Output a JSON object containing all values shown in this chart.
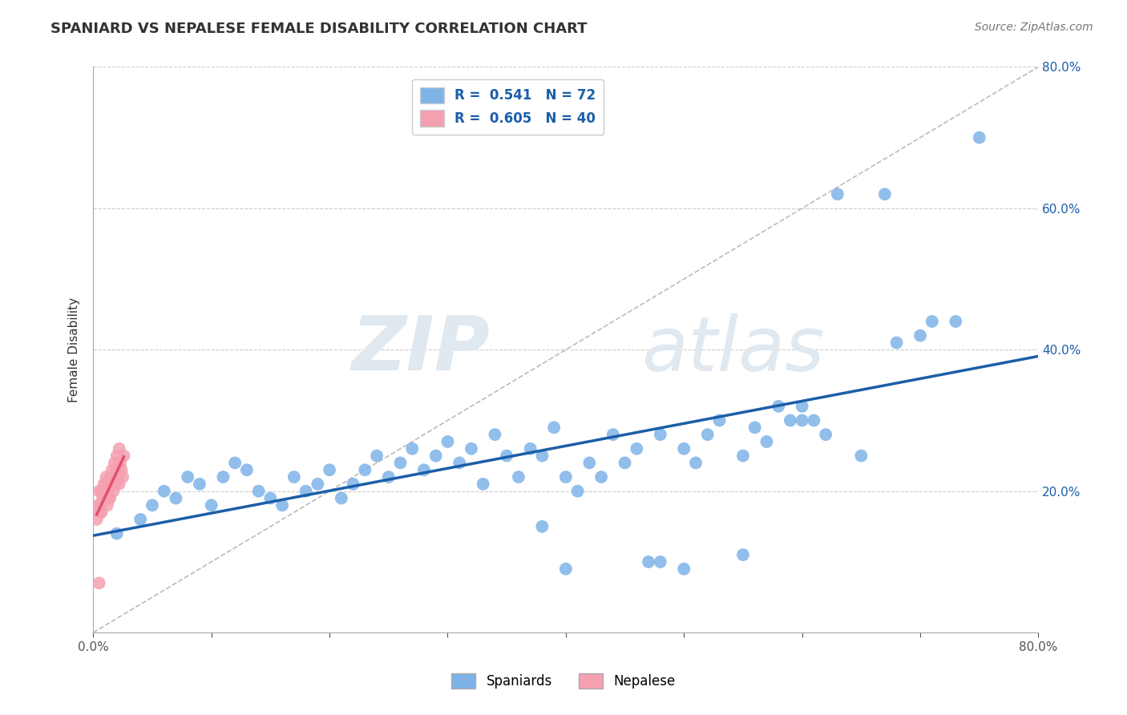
{
  "title": "SPANIARD VS NEPALESE FEMALE DISABILITY CORRELATION CHART",
  "source_text": "Source: ZipAtlas.com",
  "ylabel": "Female Disability",
  "xlim": [
    0.0,
    0.8
  ],
  "ylim": [
    0.0,
    0.8
  ],
  "spaniards_x": [
    0.02,
    0.04,
    0.05,
    0.06,
    0.07,
    0.08,
    0.09,
    0.1,
    0.11,
    0.12,
    0.13,
    0.14,
    0.15,
    0.16,
    0.17,
    0.18,
    0.19,
    0.2,
    0.21,
    0.22,
    0.23,
    0.24,
    0.25,
    0.26,
    0.27,
    0.28,
    0.29,
    0.3,
    0.31,
    0.32,
    0.33,
    0.34,
    0.35,
    0.36,
    0.37,
    0.38,
    0.39,
    0.4,
    0.41,
    0.42,
    0.43,
    0.44,
    0.45,
    0.46,
    0.47,
    0.48,
    0.5,
    0.51,
    0.52,
    0.53,
    0.55,
    0.56,
    0.57,
    0.58,
    0.59,
    0.6,
    0.61,
    0.62,
    0.63,
    0.65,
    0.67,
    0.68,
    0.7,
    0.71,
    0.73,
    0.75,
    0.48,
    0.38,
    0.55,
    0.6,
    0.5,
    0.4
  ],
  "spaniards_y": [
    0.14,
    0.16,
    0.18,
    0.2,
    0.19,
    0.22,
    0.21,
    0.18,
    0.22,
    0.24,
    0.23,
    0.2,
    0.19,
    0.18,
    0.22,
    0.2,
    0.21,
    0.23,
    0.19,
    0.21,
    0.23,
    0.25,
    0.22,
    0.24,
    0.26,
    0.23,
    0.25,
    0.27,
    0.24,
    0.26,
    0.21,
    0.28,
    0.25,
    0.22,
    0.26,
    0.25,
    0.29,
    0.22,
    0.2,
    0.24,
    0.22,
    0.28,
    0.24,
    0.26,
    0.1,
    0.28,
    0.26,
    0.24,
    0.28,
    0.3,
    0.25,
    0.29,
    0.27,
    0.32,
    0.3,
    0.32,
    0.3,
    0.28,
    0.62,
    0.25,
    0.62,
    0.41,
    0.42,
    0.44,
    0.44,
    0.7,
    0.1,
    0.15,
    0.11,
    0.3,
    0.09,
    0.09
  ],
  "nepalese_x": [
    0.003,
    0.004,
    0.005,
    0.006,
    0.007,
    0.008,
    0.009,
    0.01,
    0.011,
    0.012,
    0.013,
    0.014,
    0.015,
    0.016,
    0.017,
    0.018,
    0.019,
    0.02,
    0.021,
    0.022,
    0.023,
    0.024,
    0.025,
    0.026,
    0.012,
    0.008,
    0.015,
    0.01,
    0.018,
    0.022,
    0.007,
    0.013,
    0.016,
    0.009,
    0.011,
    0.02,
    0.006,
    0.014,
    0.017,
    0.005
  ],
  "nepalese_y": [
    0.16,
    0.18,
    0.2,
    0.18,
    0.2,
    0.19,
    0.21,
    0.2,
    0.22,
    0.2,
    0.21,
    0.19,
    0.22,
    0.21,
    0.2,
    0.22,
    0.21,
    0.23,
    0.22,
    0.21,
    0.24,
    0.23,
    0.22,
    0.25,
    0.18,
    0.2,
    0.22,
    0.19,
    0.24,
    0.26,
    0.17,
    0.21,
    0.23,
    0.2,
    0.21,
    0.25,
    0.17,
    0.19,
    0.22,
    0.07
  ],
  "spaniard_color": "#7EB3E8",
  "nepalese_color": "#F4A0B0",
  "spaniard_line_color": "#1B5EA8",
  "nepalese_line_color": "#E05070",
  "diagonal_color": "#BBBBBB",
  "R_spaniard": 0.541,
  "N_spaniard": 72,
  "R_nepalese": 0.605,
  "N_nepalese": 40,
  "watermark_zip": "ZIP",
  "watermark_atlas": "atlas",
  "background_color": "#FFFFFF",
  "grid_color": "#CCCCCC"
}
